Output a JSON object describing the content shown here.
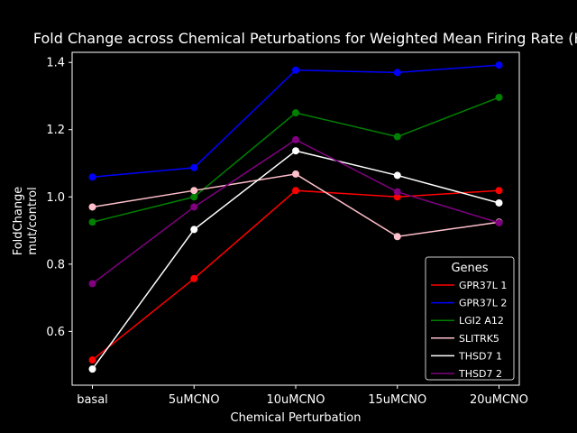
{
  "chart_data": {
    "type": "line",
    "title": "Fold Change across Chemical Peturbations for Weighted Mean Firing Rate (Hz)",
    "xlabel": "Chemical Perturbation",
    "ylabel_lines": [
      "FoldChange",
      "mut/control"
    ],
    "categories": [
      "basal",
      "5uMCNO",
      "10uMCNO",
      "15uMCNO",
      "20uMCNO"
    ],
    "ylim": [
      0.44,
      1.43
    ],
    "yticks": [
      0.6,
      0.8,
      1.0,
      1.2,
      1.4
    ],
    "ytick_labels": [
      "0.6",
      "0.8",
      "1.0",
      "1.2",
      "1.4"
    ],
    "grid": false,
    "legend_title": "Genes",
    "legend_position": "lower-right",
    "series": [
      {
        "name": "GPR37L 1",
        "color": "#ff0000",
        "values": [
          0.515,
          0.757,
          1.019,
          1.0,
          1.019
        ]
      },
      {
        "name": "GPR37L 2",
        "color": "#0000ff",
        "values": [
          1.059,
          1.087,
          1.377,
          1.37,
          1.392
        ]
      },
      {
        "name": "LGI2 A12",
        "color": "#008000",
        "values": [
          0.925,
          1.0,
          1.25,
          1.179,
          1.296
        ]
      },
      {
        "name": "SLITRK5",
        "color": "#ffc0cb",
        "values": [
          0.97,
          1.019,
          1.068,
          0.882,
          0.925
        ]
      },
      {
        "name": "THSD7 1",
        "color": "#ffffff",
        "values": [
          0.488,
          0.903,
          1.137,
          1.064,
          0.982
        ]
      },
      {
        "name": "THSD7 2",
        "color": "#800080",
        "values": [
          0.742,
          0.97,
          1.17,
          1.015,
          0.923
        ]
      }
    ]
  }
}
